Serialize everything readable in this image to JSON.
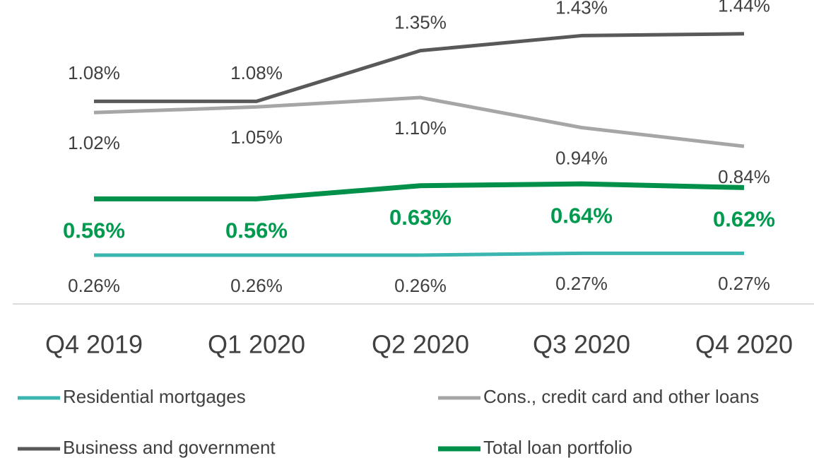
{
  "chart_data": {
    "type": "line",
    "categories": [
      "Q4 2019",
      "Q1 2020",
      "Q2 2020",
      "Q3 2020",
      "Q4 2020"
    ],
    "ylim": [
      0,
      1.62
    ],
    "series": [
      {
        "name": "Residential mortgages",
        "color": "#3ab5b0",
        "values": [
          0.26,
          0.26,
          0.26,
          0.27,
          0.27
        ],
        "value_labels": [
          "0.26%",
          "0.26%",
          "0.26%",
          "0.27%",
          "0.27%"
        ]
      },
      {
        "name": "Cons., credit card and other loans",
        "color": "#a6a6a6",
        "values": [
          1.02,
          1.05,
          1.1,
          0.94,
          0.84
        ],
        "value_labels": [
          "1.02%",
          "1.05%",
          "1.10%",
          "0.94%",
          "0.84%"
        ]
      },
      {
        "name": "Business and government",
        "color": "#595959",
        "values": [
          1.08,
          1.08,
          1.35,
          1.43,
          1.44
        ],
        "value_labels": [
          "1.08%",
          "1.08%",
          "1.35%",
          "1.43%",
          "1.44%"
        ]
      },
      {
        "name": "Total loan portfolio",
        "color": "#00904a",
        "values": [
          0.56,
          0.56,
          0.63,
          0.64,
          0.62
        ],
        "value_labels": [
          "0.56%",
          "0.56%",
          "0.63%",
          "0.64%",
          "0.62%"
        ]
      }
    ]
  }
}
